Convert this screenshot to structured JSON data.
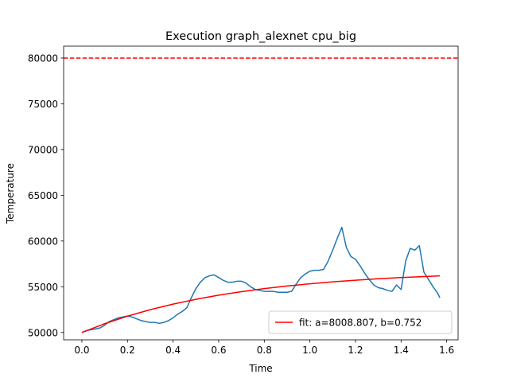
{
  "chart_data": {
    "type": "line",
    "title": "Execution graph_alexnet cpu_big",
    "xlabel": "Time",
    "ylabel": "Temperature",
    "xlim": [
      -0.08,
      1.65
    ],
    "ylim": [
      49200,
      81300
    ],
    "xticks": [
      "0.0",
      "0.2",
      "0.4",
      "0.6",
      "0.8",
      "1.0",
      "1.2",
      "1.4",
      "1.6"
    ],
    "yticks": [
      "50000",
      "55000",
      "60000",
      "65000",
      "70000",
      "75000",
      "80000"
    ],
    "grid": false,
    "legend_position": "lower-right",
    "threshold": {
      "y": 80000,
      "color": "#ff0000",
      "style": "dashed"
    },
    "series": [
      {
        "name": "",
        "color": "#1f77b4",
        "x": [
          0.0,
          0.02,
          0.04,
          0.06,
          0.08,
          0.1,
          0.12,
          0.14,
          0.16,
          0.18,
          0.2,
          0.22,
          0.24,
          0.26,
          0.28,
          0.3,
          0.32,
          0.34,
          0.36,
          0.38,
          0.4,
          0.42,
          0.44,
          0.46,
          0.48,
          0.5,
          0.52,
          0.54,
          0.56,
          0.58,
          0.6,
          0.62,
          0.64,
          0.66,
          0.68,
          0.7,
          0.72,
          0.74,
          0.76,
          0.78,
          0.8,
          0.82,
          0.84,
          0.86,
          0.88,
          0.9,
          0.92,
          0.94,
          0.96,
          0.98,
          1.0,
          1.02,
          1.04,
          1.06,
          1.08,
          1.1,
          1.12,
          1.14,
          1.16,
          1.18,
          1.2,
          1.22,
          1.24,
          1.26,
          1.28,
          1.3,
          1.32,
          1.34,
          1.36,
          1.38,
          1.4,
          1.42,
          1.44,
          1.46,
          1.48,
          1.5,
          1.52,
          1.54,
          1.56,
          1.57
        ],
        "y": [
          50000,
          50200,
          50300,
          50400,
          50500,
          50800,
          51200,
          51400,
          51600,
          51700,
          51800,
          51700,
          51500,
          51300,
          51200,
          51100,
          51100,
          51000,
          51100,
          51300,
          51600,
          52000,
          52300,
          52700,
          53800,
          54800,
          55500,
          56000,
          56200,
          56300,
          56000,
          55700,
          55500,
          55500,
          55600,
          55600,
          55400,
          55000,
          54700,
          54600,
          54500,
          54500,
          54500,
          54400,
          54400,
          54400,
          54500,
          55300,
          56000,
          56400,
          56700,
          56800,
          56800,
          56900,
          57800,
          59000,
          60300,
          61500,
          59300,
          58300,
          58000,
          57300,
          56500,
          55800,
          55200,
          54900,
          54800,
          54600,
          54500,
          55200,
          54700,
          57800,
          59200,
          59000,
          59500,
          56600,
          55800,
          55000,
          54300,
          53800
        ]
      },
      {
        "name": "fit: a=8008.807, b=0.752",
        "color": "#ff0000",
        "a": 8008.807,
        "b": 0.752,
        "x": [
          0.0,
          0.1,
          0.2,
          0.3,
          0.4,
          0.5,
          0.6,
          0.7,
          0.8,
          0.9,
          1.0,
          1.1,
          1.2,
          1.3,
          1.4,
          1.5,
          1.57
        ],
        "y": [
          50000,
          50962,
          51788,
          52497,
          53106,
          53630,
          54079,
          54465,
          54797,
          55082,
          55327,
          55537,
          55717,
          55872,
          56005,
          56120,
          56190
        ]
      }
    ]
  }
}
